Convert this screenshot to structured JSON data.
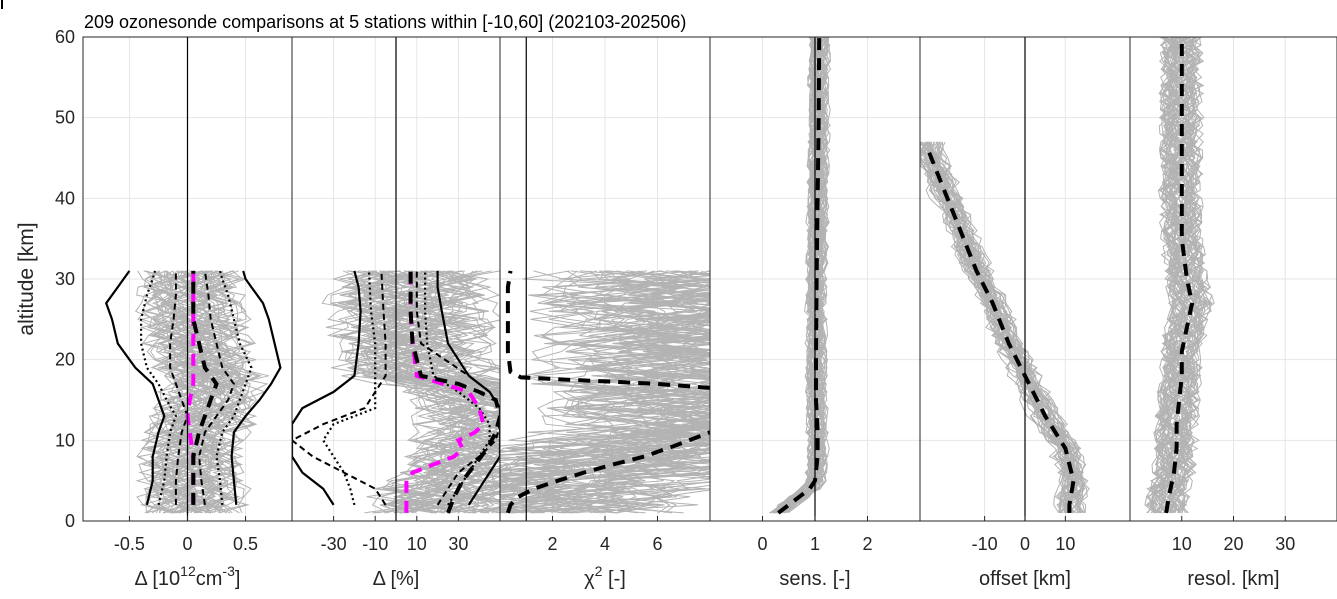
{
  "chart_data": {
    "type": "line",
    "title": "209 ozonesonde comparisons at 5 stations within [-10,60] (202103-202506)",
    "ylabel": "altitude [km]",
    "ylim": [
      0,
      60
    ],
    "yticks": [
      "0",
      "10",
      "20",
      "30",
      "40",
      "50",
      "60"
    ],
    "panels": [
      {
        "id": "delta-abs",
        "xlabel_parts": [
          "Δ [10",
          "12",
          "cm",
          "-3",
          "]"
        ],
        "xlim": [
          -0.9,
          0.9
        ],
        "xticks": [
          -0.5,
          0,
          0.5
        ],
        "xtick_labels": [
          "-0.5",
          "0",
          "0.5"
        ],
        "zero_line": 0,
        "spaghetti": {
          "count": 60,
          "y_range": [
            1,
            31
          ],
          "spread": 0.45
        },
        "series": [
          {
            "name": "",
            "style": "solid-black",
            "x": [
              -0.35,
              -0.3,
              -0.3,
              -0.25,
              -0.2,
              -0.25,
              -0.3,
              -0.45,
              -0.6,
              -0.65,
              -0.7,
              -0.65,
              -0.6,
              -0.55,
              -0.5
            ],
            "y": [
              2,
              5,
              8,
              11,
              13,
              15,
              17,
              19,
              22,
              25,
              27,
              28,
              29,
              30,
              31
            ]
          },
          {
            "name": "",
            "style": "solid-black",
            "x": [
              0.42,
              0.4,
              0.38,
              0.4,
              0.5,
              0.62,
              0.72,
              0.8,
              0.75,
              0.7,
              0.65,
              0.6,
              0.55,
              0.5,
              0.48
            ],
            "y": [
              2,
              5,
              8,
              11,
              13,
              15,
              17,
              19,
              22,
              25,
              27,
              28,
              29,
              30,
              31
            ]
          },
          {
            "name": "",
            "style": "dotted-black",
            "x": [
              -0.25,
              -0.2,
              -0.18,
              -0.15,
              -0.1,
              -0.18,
              -0.25,
              -0.35,
              -0.4,
              -0.4,
              -0.35,
              -0.3,
              -0.28
            ],
            "y": [
              2,
              5,
              8,
              11,
              13,
              15,
              17,
              19,
              22,
              25,
              28,
              30,
              31
            ]
          },
          {
            "name": "",
            "style": "dotted-black",
            "x": [
              0.3,
              0.28,
              0.25,
              0.3,
              0.4,
              0.45,
              0.5,
              0.55,
              0.45,
              0.4,
              0.35,
              0.3,
              0.28
            ],
            "y": [
              2,
              5,
              8,
              11,
              13,
              15,
              17,
              19,
              22,
              25,
              28,
              30,
              31
            ]
          },
          {
            "name": "",
            "style": "dashed-black-thin",
            "x": [
              -0.1,
              -0.1,
              -0.08,
              -0.05,
              0,
              -0.05,
              -0.1,
              -0.15,
              -0.15,
              -0.12,
              -0.1,
              -0.1
            ],
            "y": [
              2,
              5,
              8,
              11,
              13,
              15,
              17,
              19,
              22,
              25,
              28,
              31
            ]
          },
          {
            "name": "",
            "style": "dashed-black-thin",
            "x": [
              0.15,
              0.12,
              0.1,
              0.15,
              0.25,
              0.35,
              0.4,
              0.3,
              0.25,
              0.2,
              0.18,
              0.15
            ],
            "y": [
              2,
              5,
              8,
              11,
              13,
              15,
              17,
              19,
              22,
              25,
              28,
              31
            ]
          },
          {
            "name": "",
            "style": "dashed-magenta",
            "x": [
              0.05,
              0.05,
              0.05,
              0.02,
              0,
              0.02,
              0.05,
              0.05,
              0.05,
              0.05,
              0.05,
              0.05
            ],
            "y": [
              2,
              5,
              8,
              11,
              13,
              15,
              17,
              19,
              22,
              25,
              28,
              31
            ]
          },
          {
            "name": "",
            "style": "dashed-black",
            "x": [
              0.05,
              0.05,
              0.05,
              0.1,
              0.15,
              0.2,
              0.25,
              0.15,
              0.1,
              0.05,
              0.05,
              0.05
            ],
            "y": [
              2,
              5,
              8,
              11,
              13,
              15,
              17,
              19,
              22,
              25,
              28,
              31
            ]
          }
        ]
      },
      {
        "id": "delta-rel",
        "xlabel_parts": [
          "Δ [%]"
        ],
        "xlim": [
          -50,
          50
        ],
        "xticks": [
          -30,
          -10,
          10,
          30
        ],
        "xtick_labels": [
          "-30",
          "-10",
          "10",
          "30"
        ],
        "zero_line": 0,
        "spaghetti": {
          "count": 60,
          "y_range": [
            1,
            31
          ],
          "spread": 40
        },
        "series": [
          {
            "name": "",
            "style": "solid-black",
            "x": [
              -30,
              -35,
              -45,
              -50,
              -50,
              -50,
              -45,
              -30,
              -20,
              -18,
              -17,
              -18,
              -20
            ],
            "y": [
              2,
              4,
              6,
              8,
              10,
              12,
              14,
              16,
              18,
              22,
              26,
              29,
              31
            ]
          },
          {
            "name": "",
            "style": "solid-black",
            "x": [
              35,
              40,
              45,
              50,
              50,
              50,
              50,
              45,
              35,
              25,
              22,
              20,
              20
            ],
            "y": [
              2,
              4,
              6,
              8,
              10,
              12,
              14,
              16,
              18,
              22,
              26,
              29,
              31
            ]
          },
          {
            "name": "",
            "style": "dotted-black",
            "x": [
              -20,
              -22,
              -25,
              -30,
              -35,
              -30,
              -10,
              -10,
              -10,
              -10,
              -12,
              -13
            ],
            "y": [
              2,
              4,
              6,
              8,
              10,
              12,
              14,
              16,
              18,
              22,
              26,
              31
            ]
          },
          {
            "name": "",
            "style": "dotted-black",
            "x": [
              25,
              30,
              35,
              40,
              45,
              45,
              40,
              30,
              18,
              15,
              14,
              14
            ],
            "y": [
              2,
              4,
              6,
              8,
              10,
              12,
              14,
              16,
              18,
              22,
              26,
              31
            ]
          },
          {
            "name": "",
            "style": "dashed-black-thin",
            "x": [
              -5,
              -10,
              -25,
              -40,
              -50,
              -35,
              -15,
              -10,
              -5,
              -5,
              -6,
              -7
            ],
            "y": [
              2,
              4,
              6,
              8,
              10,
              12,
              14,
              16,
              18,
              22,
              26,
              31
            ]
          },
          {
            "name": "",
            "style": "dashed-black-thin",
            "x": [
              20,
              25,
              30,
              40,
              48,
              50,
              50,
              45,
              35,
              12,
              10,
              10
            ],
            "y": [
              2,
              4,
              6,
              8,
              10,
              12,
              14,
              16,
              18,
              22,
              26,
              31
            ]
          },
          {
            "name": "",
            "style": "dashed-magenta",
            "x": [
              5,
              5,
              5,
              8,
              18,
              28,
              32,
              30,
              38,
              42,
              40,
              35,
              10,
              8,
              7,
              7
            ],
            "y": [
              1,
              3,
              5,
              6,
              7,
              8,
              9,
              10,
              11,
              12,
              14,
              16,
              18,
              22,
              26,
              31
            ]
          },
          {
            "name": "",
            "style": "dashed-black",
            "x": [
              25,
              28,
              32,
              38,
              44,
              48,
              50,
              48,
              40,
              30,
              12,
              8,
              7,
              7
            ],
            "y": [
              1,
              3,
              5,
              7,
              9,
              11,
              13,
              15,
              16,
              17,
              18,
              22,
              26,
              31
            ]
          }
        ]
      },
      {
        "id": "chi2",
        "xlabel_parts": [
          "χ",
          "2",
          " [-]"
        ],
        "xlim": [
          0,
          8
        ],
        "xticks": [
          2,
          4,
          6
        ],
        "xtick_labels": [
          "2",
          "4",
          "6"
        ],
        "zero_line": 1,
        "spaghetti": {
          "count": 70,
          "y_range": [
            1,
            31
          ],
          "spread": 7
        },
        "series": [
          {
            "name": "",
            "style": "dashed-black",
            "x": [
              0.3,
              0.4,
              0.7,
              1.3,
              2.2,
              3.2,
              4.3,
              5.5,
              6.8,
              8
            ],
            "y": [
              1,
              2,
              3,
              4,
              5,
              6,
              7,
              8,
              9.5,
              11
            ]
          },
          {
            "name": "",
            "style": "dashed-black",
            "x": [
              8,
              6,
              4,
              2,
              0.8,
              0.4,
              0.3,
              0.3,
              0.3,
              0.4
            ],
            "y": [
              16.5,
              17,
              17.3,
              17.6,
              17.8,
              18.5,
              21,
              25,
              29,
              31
            ]
          }
        ]
      },
      {
        "id": "sensitivity",
        "xlabel_parts": [
          "sens. [-]"
        ],
        "xlim": [
          -1,
          3
        ],
        "xticks": [
          0,
          1,
          2
        ],
        "xtick_labels": [
          "0",
          "1",
          "2"
        ],
        "zero_line": 1,
        "spaghetti": {
          "count": 50,
          "y_range": [
            1,
            60
          ],
          "spread": 0.2
        },
        "series": [
          {
            "name": "",
            "style": "dashed-black",
            "x": [
              0.3,
              0.5,
              0.7,
              0.9,
              1,
              1.05,
              1.05,
              1.02,
              1.02,
              1.03,
              1.05,
              1.07,
              1.08
            ],
            "y": [
              1,
              2,
              3,
              4,
              5,
              8,
              11,
              15,
              20,
              30,
              40,
              50,
              60
            ]
          }
        ]
      },
      {
        "id": "offset",
        "xlabel_parts": [
          "offset [km]"
        ],
        "xlim": [
          -26,
          26
        ],
        "xticks": [
          -10,
          0,
          10
        ],
        "xtick_labels": [
          "-10",
          "0",
          "10"
        ],
        "zero_line": 0,
        "spaghetti": {
          "count": 45,
          "y_range": [
            1,
            47
          ],
          "spread": 4
        },
        "series": [
          {
            "name": "",
            "style": "dashed-black",
            "x": [
              11,
              11,
              12,
              10,
              5,
              0,
              -4,
              -8,
              -12,
              -16,
              -20,
              -24
            ],
            "y": [
              1,
              2,
              5,
              9,
              13,
              18,
              22,
              27,
              31,
              36,
              41,
              46
            ]
          }
        ]
      },
      {
        "id": "resolution",
        "xlabel_parts": [
          "resol. [km]"
        ],
        "xlim": [
          0,
          40
        ],
        "xticks": [
          10,
          20,
          30
        ],
        "xtick_labels": [
          "10",
          "20",
          "30"
        ],
        "zero_line": null,
        "spaghetti": {
          "count": 55,
          "y_range": [
            1,
            60
          ],
          "spread": 4
        },
        "series": [
          {
            "name": "",
            "style": "dashed-black",
            "x": [
              7,
              7.5,
              8.5,
              9,
              9,
              9.5,
              10,
              10,
              11,
              12,
              11,
              10,
              10,
              10,
              10,
              10
            ],
            "y": [
              1,
              3,
              6,
              9,
              12,
              15,
              18,
              21,
              24,
              27,
              30,
              35,
              40,
              45,
              50,
              60
            ]
          }
        ]
      }
    ]
  }
}
